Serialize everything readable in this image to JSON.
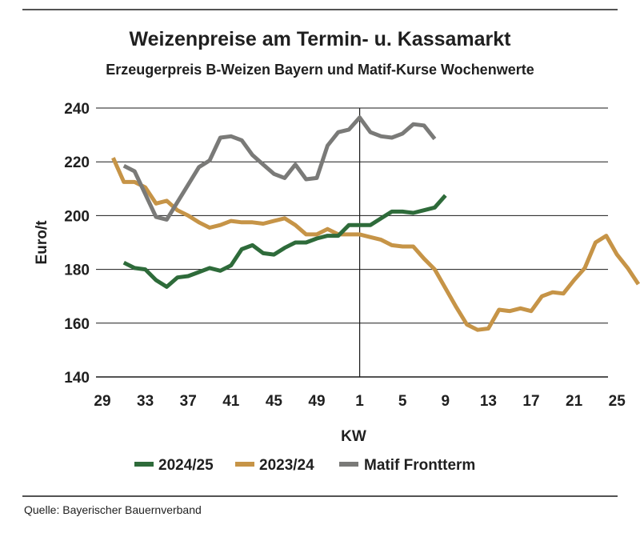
{
  "chart_data": {
    "type": "line",
    "title": "Weizenpreise am Termin- u. Kassamarkt",
    "subtitle": "Erzeugerpreis B-Weizen Bayern und Matif-Kurse Wochenwerte",
    "xlabel": "KW",
    "ylabel": "Euro/t",
    "ylim": [
      140,
      240
    ],
    "yticks": [
      140,
      160,
      180,
      200,
      220,
      240
    ],
    "xticks": [
      "29",
      "33",
      "37",
      "41",
      "45",
      "49",
      "1",
      "5",
      "9",
      "13",
      "17",
      "21",
      "25"
    ],
    "year_divider": "1",
    "grid": "horizontal",
    "legend_position": "bottom",
    "series": [
      {
        "name": "2024/25",
        "color": "#2e6b3a",
        "points": [
          [
            "31",
            182.5
          ],
          [
            "32",
            180.5
          ],
          [
            "33",
            180
          ],
          [
            "34",
            176
          ],
          [
            "35",
            173.5
          ],
          [
            "36",
            177
          ],
          [
            "37",
            177.5
          ],
          [
            "38",
            179
          ],
          [
            "39",
            180.5
          ],
          [
            "40",
            179.5
          ],
          [
            "41",
            181.5
          ],
          [
            "42",
            187.5
          ],
          [
            "43",
            189
          ],
          [
            "44",
            186
          ],
          [
            "45",
            185.5
          ],
          [
            "46",
            188
          ],
          [
            "47",
            190
          ],
          [
            "48",
            190
          ],
          [
            "49",
            191.5
          ],
          [
            "50",
            192.5
          ],
          [
            "51",
            192.5
          ],
          [
            "52",
            196.5
          ],
          [
            "1",
            196.5
          ],
          [
            "2",
            196.5
          ],
          [
            "3",
            199
          ],
          [
            "4",
            201.5
          ],
          [
            "5",
            201.5
          ],
          [
            "6",
            201
          ],
          [
            "7",
            202
          ],
          [
            "8",
            203
          ],
          [
            "9",
            207.5
          ]
        ]
      },
      {
        "name": "2023/24",
        "color": "#c69447",
        "points": [
          [
            "30",
            221.5
          ],
          [
            "31",
            212.5
          ],
          [
            "32",
            212.5
          ],
          [
            "33",
            210.5
          ],
          [
            "34",
            204.5
          ],
          [
            "35",
            205.5
          ],
          [
            "36",
            202
          ],
          [
            "37",
            200
          ],
          [
            "38",
            197.5
          ],
          [
            "39",
            195.5
          ],
          [
            "40",
            196.5
          ],
          [
            "41",
            198
          ],
          [
            "42",
            197.5
          ],
          [
            "43",
            197.5
          ],
          [
            "44",
            197
          ],
          [
            "45",
            198
          ],
          [
            "46",
            199
          ],
          [
            "47",
            196.5
          ],
          [
            "48",
            193
          ],
          [
            "49",
            193
          ],
          [
            "50",
            195
          ],
          [
            "51",
            193
          ],
          [
            "52",
            193
          ],
          [
            "1",
            193
          ],
          [
            "2",
            192
          ],
          [
            "3",
            191
          ],
          [
            "4",
            189
          ],
          [
            "5",
            188.5
          ],
          [
            "6",
            188.5
          ],
          [
            "7",
            184
          ],
          [
            "8",
            180
          ],
          [
            "9",
            173
          ],
          [
            "10",
            166
          ],
          [
            "11",
            159.5
          ],
          [
            "12",
            157.5
          ],
          [
            "13",
            158
          ],
          [
            "14",
            165
          ],
          [
            "15",
            164.5
          ],
          [
            "16",
            165.5
          ],
          [
            "17",
            164.5
          ],
          [
            "18",
            170
          ],
          [
            "19",
            171.5
          ],
          [
            "20",
            171
          ],
          [
            "21",
            176
          ],
          [
            "22",
            180.5
          ],
          [
            "23",
            190
          ],
          [
            "24",
            192.5
          ],
          [
            "25",
            185.5
          ],
          [
            "26",
            180.5
          ],
          [
            "27",
            174.5
          ]
        ]
      },
      {
        "name": "Matif Frontterm",
        "color": "#7a7a78",
        "points": [
          [
            "31",
            218.5
          ],
          [
            "32",
            216.5
          ],
          [
            "33",
            208
          ],
          [
            "34",
            199.5
          ],
          [
            "35",
            198.5
          ],
          [
            "36",
            205
          ],
          [
            "37",
            211.5
          ],
          [
            "38",
            218
          ],
          [
            "39",
            220.5
          ],
          [
            "40",
            229
          ],
          [
            "41",
            229.5
          ],
          [
            "42",
            228
          ],
          [
            "43",
            222.5
          ],
          [
            "44",
            219
          ],
          [
            "45",
            215.5
          ],
          [
            "46",
            214
          ],
          [
            "47",
            219
          ],
          [
            "48",
            213.5
          ],
          [
            "49",
            214
          ],
          [
            "50",
            226
          ],
          [
            "51",
            231
          ],
          [
            "52",
            232
          ],
          [
            "1",
            236.5
          ],
          [
            "2",
            231
          ],
          [
            "3",
            229.5
          ],
          [
            "4",
            229
          ],
          [
            "5",
            230.5
          ],
          [
            "6",
            234
          ],
          [
            "7",
            233.5
          ],
          [
            "8",
            228.5
          ]
        ]
      }
    ]
  },
  "source": "Quelle: Bayerischer Bauernverband"
}
